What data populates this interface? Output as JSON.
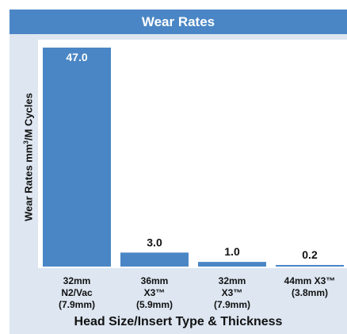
{
  "chart_data": {
    "type": "bar",
    "title": "Wear Rates",
    "ylabel_prefix": "Wear Rates mm",
    "ylabel_sup": "3",
    "ylabel_suffix": "/M Cycles",
    "xlabel": "Head Size/Insert Type & Thickness",
    "categories": [
      "32mm\nN2/Vac\n(7.9mm)",
      "36mm\nX3™\n(5.9mm)",
      "32mm\nX3™\n(7.9mm)",
      "44mm X3™\n(3.8mm)"
    ],
    "values": [
      47.0,
      3.0,
      1.0,
      0.2
    ],
    "value_labels": [
      "47.0",
      "3.0",
      "1.0",
      "0.2"
    ],
    "ylim": [
      0,
      47
    ],
    "grid": false,
    "colors": {
      "bar": "#4a86c5",
      "title_bar": "#4a86c5",
      "frame": "#dde6f1",
      "plot_background": "#ffffff"
    }
  }
}
